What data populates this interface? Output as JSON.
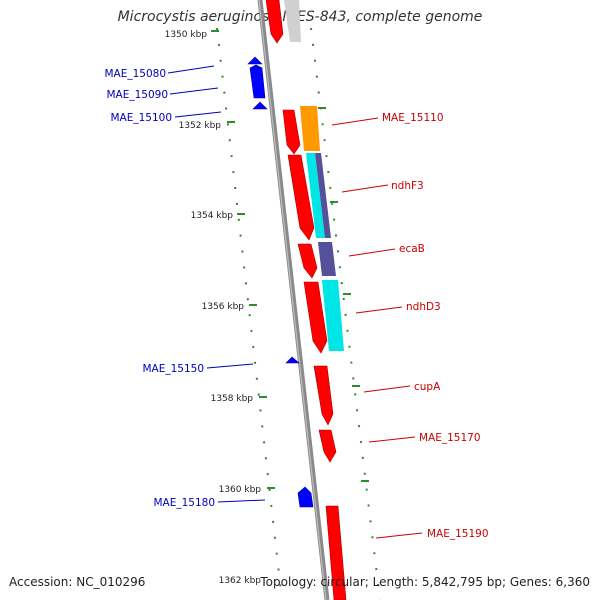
{
  "title": "Microcystis aeruginosa NIES-843, complete genome",
  "footer": {
    "accession": "Accession: NC_010296",
    "topology": "Topology: circular; Length: 5,842,795 bp; Genes: 6,360"
  },
  "colors": {
    "backbone": "#888888",
    "tick": "#2e8b2e",
    "forward_gene": "#ff0000",
    "reverse_gene": "#0000ff",
    "forward_label": "#cc0000",
    "reverse_label": "#0000bb",
    "cog_orange": "#ff9900",
    "cog_cyan": "#00e5e5",
    "cog_slate": "#55509a",
    "cog_gray": "#cfcfcf"
  },
  "scale_labels": [
    "1350 kbp",
    "1352 kbp",
    "1354 kbp",
    "1356 kbp",
    "1358 kbp",
    "1360 kbp",
    "1362 kbp"
  ],
  "forward_gene_labels": [
    "MAE_15110",
    "ndhF3",
    "ecaB",
    "ndhD3",
    "cupA",
    "MAE_15170",
    "MAE_15190"
  ],
  "reverse_gene_labels": [
    "MAE_15080",
    "MAE_15090",
    "MAE_15100",
    "MAE_15150",
    "MAE_15180"
  ]
}
